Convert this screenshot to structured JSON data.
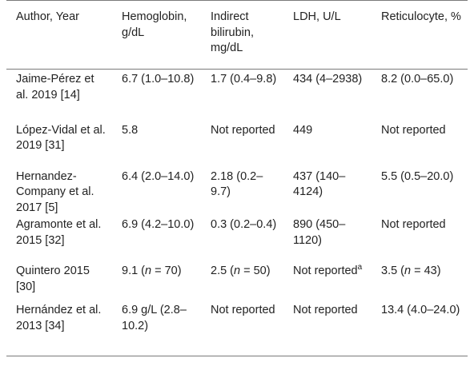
{
  "table": {
    "headers": [
      "Author, Year",
      "Hemoglobin, g/dL",
      "Indirect bilirubin, mg/dL",
      "LDH, U/L",
      "Reticulocyte, %"
    ],
    "rows": [
      {
        "author": "Jaime-Pérez et al. 2019 [14]",
        "hemoglobin": "6.7 (1.0–10.8)",
        "bilirubin": "1.7 (0.4–9.8)",
        "ldh": "434 (4–2938)",
        "reticulocyte": "8.2 (0.0–65.0)"
      },
      {
        "author": "López-Vidal et al. 2019 [31]",
        "hemoglobin": "5.8",
        "bilirubin": "Not reported",
        "ldh": "449",
        "reticulocyte": "Not reported"
      },
      {
        "author": "Hernandez-Company et al. 2017 [5]",
        "hemoglobin": "6.4 (2.0–14.0)",
        "bilirubin": "2.18 (0.2–9.7)",
        "ldh": "437 (140–4124)",
        "reticulocyte": "5.5 (0.5–20.0)"
      },
      {
        "author": "Agramonte et al. 2015 [32]",
        "hemoglobin": "6.9 (4.2–10.0)",
        "bilirubin": "0.3 (0.2–0.4)",
        "ldh": "890 (450–1120)",
        "reticulocyte": "Not reported"
      },
      {
        "author": "Quintero 2015 [30]",
        "hemoglobin_prefix": "9.1 (",
        "hemoglobin_n": "n",
        "hemoglobin_suffix": " = 70)",
        "bilirubin_prefix": "2.5 (",
        "bilirubin_n": "n",
        "bilirubin_suffix": " = 50)",
        "ldh": "Not reported",
        "ldh_sup": "a",
        "reticulocyte_prefix": "3.5 (",
        "reticulocyte_n": "n",
        "reticulocyte_suffix": " = 43)"
      },
      {
        "author": "Hernández et al. 2013 [34]",
        "hemoglobin": "6.9 g/L (2.8–10.2)",
        "bilirubin": "Not reported",
        "ldh": "Not reported",
        "reticulocyte": "13.4 (4.0–24.0)"
      }
    ]
  }
}
